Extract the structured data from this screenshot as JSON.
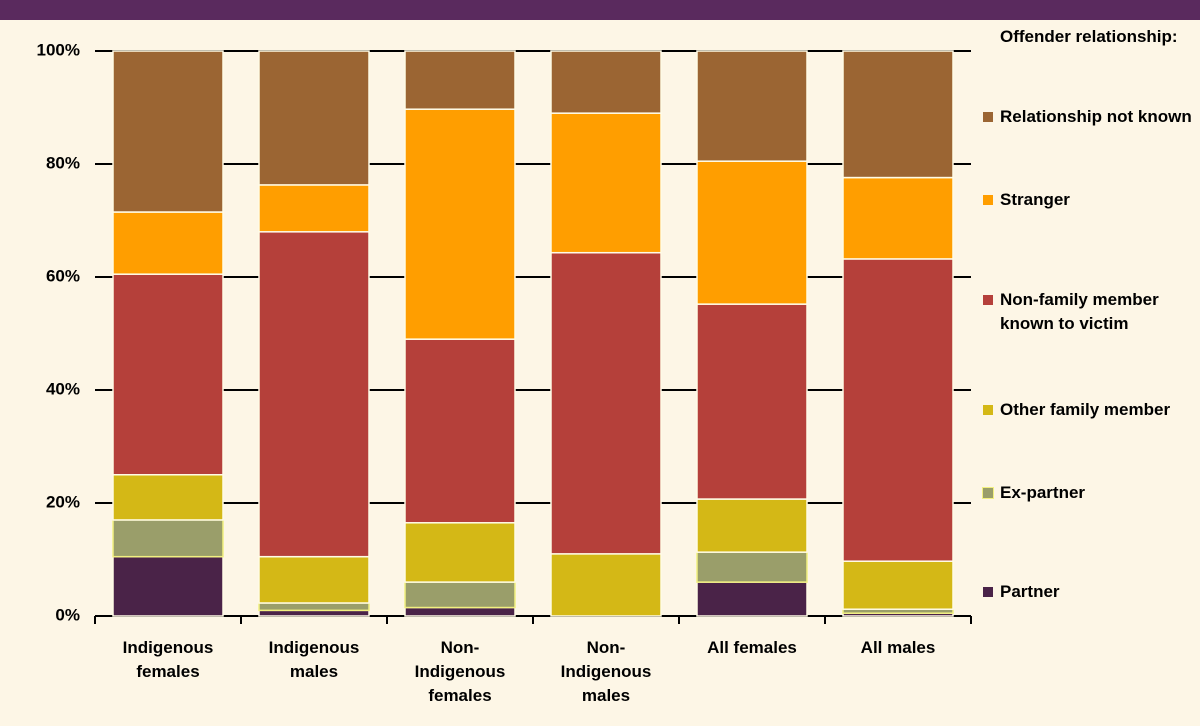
{
  "chart_data": {
    "type": "stacked_bar",
    "categories": [
      "Indigenous females",
      "Indigenous males",
      "Non-Indigenous females",
      "Non-Indigenous males",
      "All females",
      "All males"
    ],
    "legend_title": "Offender relationship:",
    "series": [
      {
        "name": "Partner",
        "color": "#4a2348",
        "values": [
          10.5,
          1,
          1.5,
          0,
          6,
          0.5
        ]
      },
      {
        "name": "Ex-partner",
        "color": "#9a9e6a",
        "values": [
          6.5,
          1.3,
          4.5,
          0,
          5.3,
          0.7
        ]
      },
      {
        "name": "Other family member",
        "color": "#d4b816",
        "values": [
          8,
          8.2,
          10.5,
          11,
          9.4,
          8.5
        ]
      },
      {
        "name": "Non-family member known to victim",
        "color": "#b5403a",
        "values": [
          35.5,
          57.5,
          32.5,
          53.3,
          34.5,
          53.5
        ]
      },
      {
        "name": "Stranger",
        "color": "#ff9e00",
        "values": [
          11,
          8.3,
          40.7,
          24.7,
          25.3,
          14.4
        ]
      },
      {
        "name": "Relationship not known",
        "color": "#9b6533",
        "values": [
          28.5,
          23.7,
          10.3,
          11,
          19.5,
          22.4
        ]
      }
    ],
    "ylim": [
      0,
      100
    ],
    "yticks": [
      {
        "value": 0,
        "label": "0%"
      },
      {
        "value": 20,
        "label": "20%"
      },
      {
        "value": 40,
        "label": "40%"
      },
      {
        "value": 60,
        "label": "60%"
      },
      {
        "value": 80,
        "label": "80%"
      },
      {
        "value": 100,
        "label": "100%"
      }
    ],
    "grid": true
  }
}
